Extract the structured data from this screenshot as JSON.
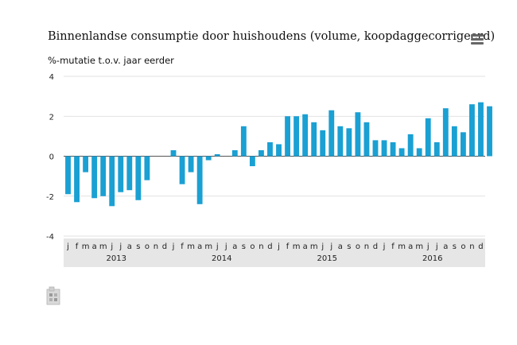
{
  "header": {
    "title": "Binnenlandse consumptie door huishoudens (volume, koopdaggecorrigeerd)",
    "menu_icon": "hamburger-menu-icon"
  },
  "logo_icon": "cbs-logo-icon",
  "chart_data": {
    "type": "bar",
    "ylabel": "%-mutatie t.o.v. jaar eerder",
    "ylim": [
      -4,
      4
    ],
    "yticks": [
      4,
      2,
      0,
      -2,
      -4
    ],
    "grid": true,
    "bar_color": "#1aa0d3",
    "axis_band_color": "#e6e6e6",
    "years": [
      "2013",
      "2014",
      "2015",
      "2016"
    ],
    "months": [
      "j",
      "f",
      "m",
      "a",
      "m",
      "j",
      "j",
      "a",
      "s",
      "o",
      "n",
      "d"
    ],
    "values": [
      -1.9,
      -2.3,
      -0.8,
      -2.1,
      -2.0,
      -2.5,
      -1.8,
      -1.7,
      -2.2,
      -1.2,
      0.0,
      0.0,
      0.3,
      -1.4,
      -0.8,
      -2.4,
      -0.2,
      0.1,
      0.0,
      0.3,
      1.5,
      -0.5,
      0.3,
      0.7,
      0.6,
      2.0,
      2.0,
      2.1,
      1.7,
      1.3,
      2.3,
      1.5,
      1.4,
      2.2,
      1.7,
      0.8,
      0.8,
      0.7,
      0.4,
      1.1,
      0.4,
      1.9,
      0.7,
      2.4,
      1.5,
      1.2,
      2.6,
      2.7,
      2.5
    ]
  }
}
